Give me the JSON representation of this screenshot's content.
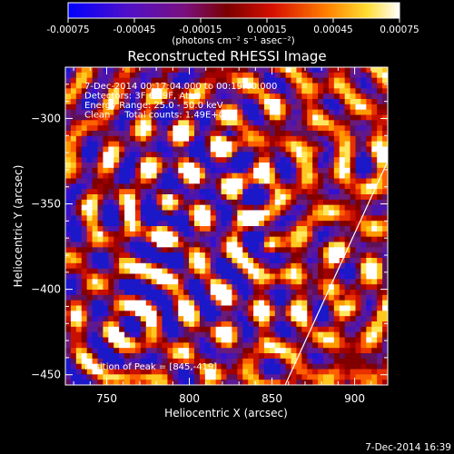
{
  "chart_data": {
    "type": "heatmap",
    "title": "Reconstructed RHESSI Image",
    "xlabel": "Heliocentric X (arcsec)",
    "ylabel": "Heliocentric Y (arcsec)",
    "xlim": [
      725,
      920
    ],
    "ylim": [
      -456,
      -270
    ],
    "xticks": [
      750,
      800,
      850,
      900
    ],
    "yticks": [
      -300,
      -350,
      -400,
      -450
    ],
    "colorbar": {
      "min": -0.00075,
      "max": 0.00075,
      "ticks": [
        "-0.00075",
        "-0.00045",
        "-0.00015",
        "0.00015",
        "0.00045",
        "0.00075"
      ],
      "label": "(photons cm⁻² s⁻¹ asec⁻²)"
    },
    "annotations": [
      "7-Dec-2014 00:17:04.000 to 00:19:00.000",
      "Detectors: 3F 6F 9F, Att 0",
      "Energy Range: 25.0 - 50.0 keV",
      "Clean     Total counts: 1.49E+03"
    ],
    "peak_label": "Position of Peak = [845,-419]",
    "limb_line": {
      "x": [
        858,
        920
      ],
      "y": [
        -456,
        -325
      ]
    }
  },
  "footer": {
    "timestamp": "7-Dec-2014 16:39"
  }
}
